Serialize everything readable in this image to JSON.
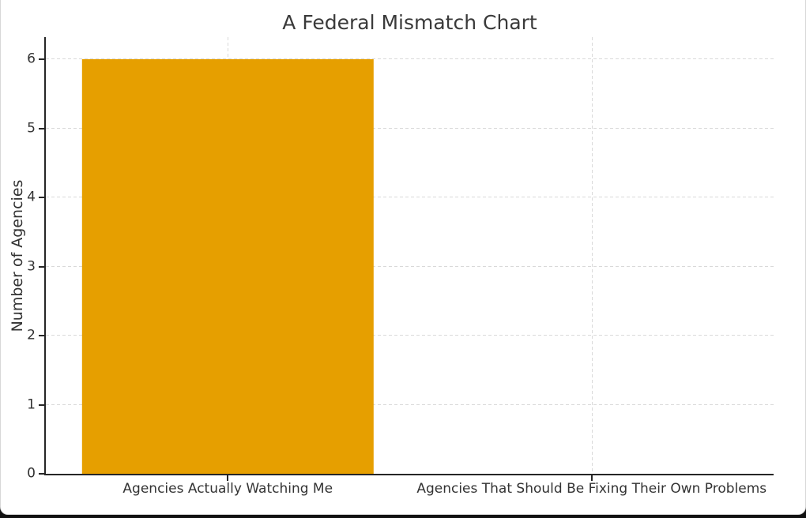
{
  "theme": {
    "page_background": "#121212",
    "card_background": "#ffffff",
    "card_border": "#d8d8d8",
    "spine_color": "#262626",
    "grid_color": "#d9d9d9",
    "text_color": "#333333",
    "title_color": "#3a3a3a"
  },
  "chart_data": {
    "type": "bar",
    "title": "A Federal Mismatch Chart",
    "xlabel": "",
    "ylabel": "Number of Agencies",
    "categories": [
      "Agencies Actually Watching Me",
      "Agencies That Should Be Fixing Their Own Problems"
    ],
    "values": [
      6,
      0
    ],
    "bar_color": "#E69F00",
    "bar_width_fraction": 0.4,
    "yticks": [
      0,
      1,
      2,
      3,
      4,
      5,
      6
    ],
    "ylim": [
      0,
      6.32
    ],
    "grid": true,
    "grid_style": "dashed",
    "legend": false
  }
}
